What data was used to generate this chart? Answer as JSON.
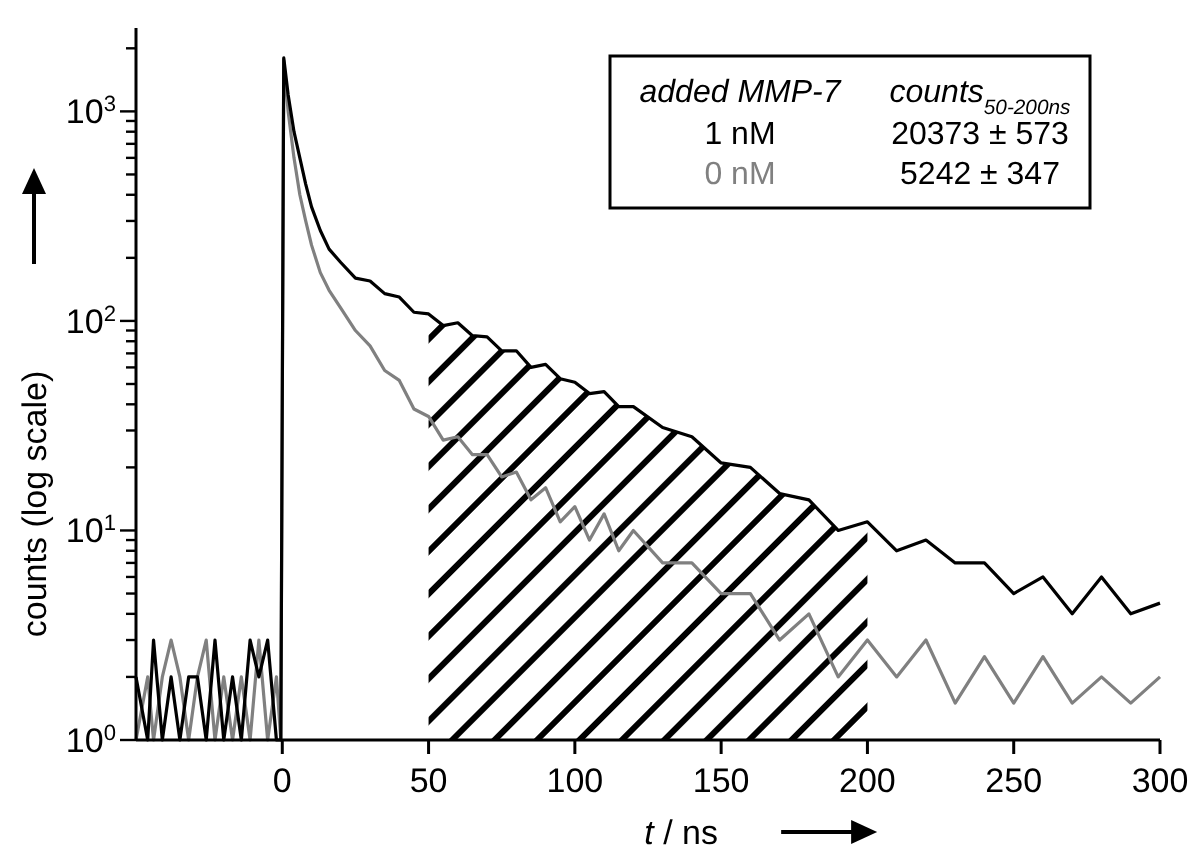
{
  "chart_data": {
    "type": "line",
    "xlabel": "t / ns",
    "ylabel": "counts (log scale)",
    "log": "y",
    "xlim": [
      -50,
      300
    ],
    "ylim": [
      1,
      2500
    ],
    "xticks": [
      0,
      50,
      100,
      150,
      200,
      250,
      300
    ],
    "yticks": [
      {
        "value": 1,
        "label": "10$^{0}$"
      },
      {
        "value": 2,
        "label": null
      },
      {
        "value": 3,
        "label": null
      },
      {
        "value": 4,
        "label": null
      },
      {
        "value": 5,
        "label": null
      },
      {
        "value": 6,
        "label": null
      },
      {
        "value": 7,
        "label": null
      },
      {
        "value": 8,
        "label": null
      },
      {
        "value": 9,
        "label": null
      },
      {
        "value": 10,
        "label": "10$^{1}$"
      },
      {
        "value": 20,
        "label": null
      },
      {
        "value": 30,
        "label": null
      },
      {
        "value": 40,
        "label": null
      },
      {
        "value": 50,
        "label": null
      },
      {
        "value": 60,
        "label": null
      },
      {
        "value": 70,
        "label": null
      },
      {
        "value": 80,
        "label": null
      },
      {
        "value": 90,
        "label": null
      },
      {
        "value": 100,
        "label": "10$^{2}$"
      },
      {
        "value": 200,
        "label": null
      },
      {
        "value": 300,
        "label": null
      },
      {
        "value": 400,
        "label": null
      },
      {
        "value": 500,
        "label": null
      },
      {
        "value": 600,
        "label": null
      },
      {
        "value": 700,
        "label": null
      },
      {
        "value": 800,
        "label": null
      },
      {
        "value": 900,
        "label": null
      },
      {
        "value": 1000,
        "label": "10$^{3}$"
      },
      {
        "value": 2000,
        "label": null
      }
    ],
    "legend": "top right",
    "legend_title": "added MMP-7",
    "line_style": "solid",
    "series": [
      {
        "name": "1 nM",
        "color": "#000000",
        "x": [
          -50,
          -46,
          -44,
          -41,
          -38,
          -35,
          -32,
          -29,
          -26,
          -23,
          -20,
          -17,
          -14,
          -11,
          -8,
          -5,
          -2,
          -0.5,
          0.5,
          2,
          4,
          6,
          8,
          10,
          13,
          16,
          20,
          25,
          30,
          35,
          40,
          45,
          50,
          55,
          60,
          65,
          70,
          75,
          80,
          85,
          90,
          95,
          100,
          105,
          110,
          115,
          120,
          130,
          140,
          150,
          160,
          170,
          180,
          190,
          200,
          210,
          220,
          230,
          240,
          250,
          260,
          270,
          280,
          290,
          300
        ],
        "values": [
          2,
          1,
          3,
          1,
          2,
          1,
          2,
          2,
          1,
          3,
          1,
          2,
          1,
          3,
          2,
          3,
          1,
          1,
          1800,
          1200,
          800,
          600,
          450,
          350,
          270,
          220,
          190,
          160,
          155,
          135,
          130,
          110,
          108,
          95,
          98,
          85,
          84,
          72,
          72,
          60,
          62,
          53,
          51,
          45,
          46,
          39,
          39,
          31,
          28,
          21,
          20,
          15,
          14,
          10,
          11,
          8,
          9,
          7,
          7,
          5,
          6,
          4,
          6,
          4,
          4.5
        ]
      },
      {
        "name": "0 nM",
        "color": "#808080",
        "x": [
          -50,
          -46,
          -44,
          -41,
          -38,
          -35,
          -32,
          -29,
          -26,
          -23,
          -20,
          -17,
          -14,
          -11,
          -8,
          -5,
          -2,
          -0.5,
          0.5,
          2,
          4,
          6,
          8,
          10,
          13,
          16,
          20,
          25,
          30,
          35,
          40,
          45,
          50,
          55,
          60,
          65,
          70,
          75,
          80,
          85,
          90,
          95,
          100,
          105,
          110,
          115,
          120,
          130,
          140,
          150,
          160,
          170,
          180,
          190,
          200,
          210,
          220,
          230,
          240,
          250,
          260,
          270,
          280,
          290,
          300
        ],
        "values": [
          1,
          2,
          1,
          2,
          3,
          2,
          1,
          2,
          3,
          1,
          2,
          1,
          2,
          1,
          3,
          1,
          2,
          1,
          1750,
          1000,
          600,
          400,
          300,
          230,
          170,
          140,
          115,
          90,
          76,
          58,
          52,
          38,
          35,
          27,
          28,
          23,
          23,
          18,
          19,
          14,
          16,
          11,
          13,
          9,
          12,
          8,
          10,
          7,
          7,
          5,
          5,
          3,
          4,
          2,
          3,
          2,
          3,
          1.5,
          2.5,
          1.5,
          2.5,
          1.5,
          2,
          1.5,
          2
        ]
      }
    ],
    "bands": [
      {
        "axis": "x",
        "from": 50,
        "to": 200,
        "color": "#000000"
      }
    ],
    "annotations": [
      "counts$_{50-200ns}$",
      "20373 ± 573",
      "5242 ± 347"
    ]
  }
}
